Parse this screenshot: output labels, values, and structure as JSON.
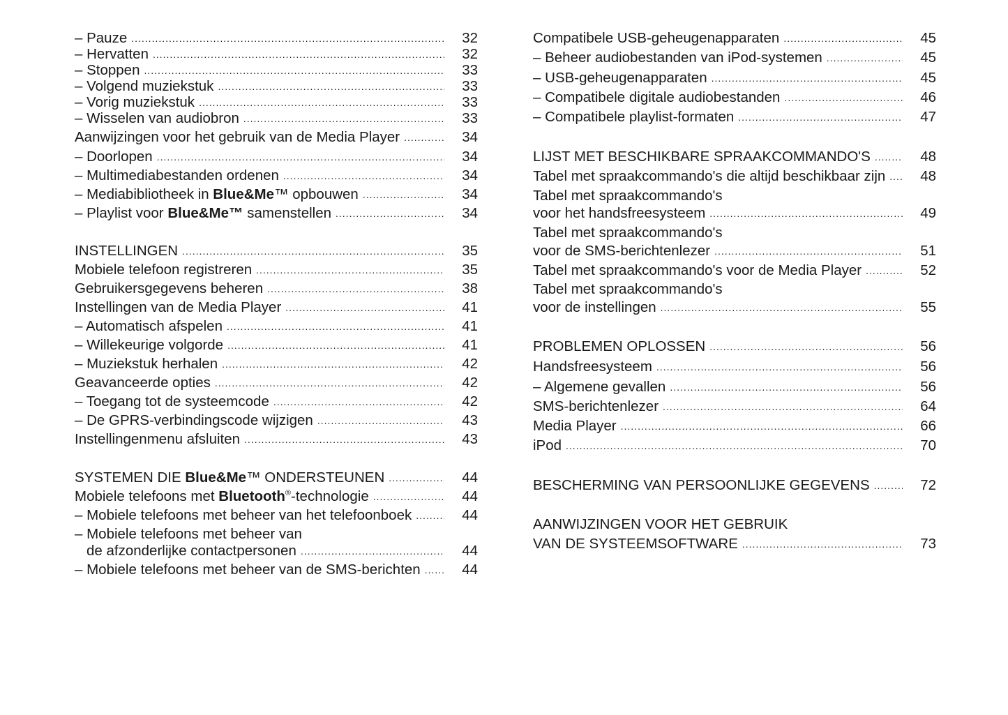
{
  "toc": {
    "left": [
      {
        "text": "– Pauze",
        "page": "32"
      },
      {
        "text": "– Hervatten",
        "page": "32"
      },
      {
        "text": "– Stoppen",
        "page": "33"
      },
      {
        "text": "– Volgend muziekstuk",
        "page": "33"
      },
      {
        "text": "– Vorig muziekstuk",
        "page": "33"
      },
      {
        "text": "– Wisselen van audiobron",
        "page": "33"
      },
      {
        "text": "Aanwijzingen voor het gebruik van de Media Player",
        "page": "34"
      },
      {
        "text": "– Doorlopen",
        "page": "34"
      },
      {
        "text": "– Multimediabestanden ordenen",
        "page": "34"
      },
      {
        "parts": [
          {
            "t": "– Mediabibliotheek in "
          },
          {
            "t": "Blue&Me",
            "b": true
          },
          {
            "t": "™ opbouwen"
          }
        ],
        "page": "34"
      },
      {
        "parts": [
          {
            "t": "– Playlist voor "
          },
          {
            "t": "Blue&Me™",
            "b": true
          },
          {
            "t": " samenstellen"
          }
        ],
        "page": "34"
      },
      {
        "text": "INSTELLINGEN",
        "page": "35"
      },
      {
        "text": "Mobiele telefoon registreren",
        "page": "35"
      },
      {
        "text": "Gebruikersgegevens beheren",
        "page": "38"
      },
      {
        "text": "Instellingen van de Media Player",
        "page": "41"
      },
      {
        "text": "– Automatisch afspelen",
        "page": "41"
      },
      {
        "text": "– Willekeurige volgorde",
        "page": "41"
      },
      {
        "text": "– Muziekstuk herhalen",
        "page": "42"
      },
      {
        "text": "Geavanceerde opties",
        "page": "42"
      },
      {
        "text": "– Toegang tot de systeemcode",
        "page": "42"
      },
      {
        "text": "– De GPRS-verbindingscode wijzigen",
        "page": "43"
      },
      {
        "text": "Instellingenmenu afsluiten",
        "page": "43"
      },
      {
        "parts": [
          {
            "t": "SYSTEMEN DIE "
          },
          {
            "t": "Blue&Me",
            "b": true
          },
          {
            "t": "™ ONDERSTEUNEN"
          }
        ],
        "page": "44"
      },
      {
        "parts": [
          {
            "t": "Mobiele telefoons met "
          },
          {
            "t": "Bluetooth",
            "b": true
          },
          {
            "t": "®",
            "sup": true
          },
          {
            "t": "-technologie"
          }
        ],
        "page": "44"
      },
      {
        "text": "– Mobiele telefoons met beheer van het telefoonboek",
        "page": "44"
      },
      {
        "text": "– Mobiele telefoons met beheer van"
      },
      {
        "text": "de afzonderlijke contactpersonen",
        "page": "44",
        "indent": true
      },
      {
        "text": "– Mobiele telefoons met beheer van de SMS-berichten",
        "page": "44"
      }
    ],
    "right": [
      {
        "text": "Compatibele USB-geheugenapparaten",
        "page": "45"
      },
      {
        "text": "– Beheer audiobestanden van iPod-systemen",
        "page": "45"
      },
      {
        "text": "– USB-geheugenapparaten",
        "page": "45"
      },
      {
        "text": "– Compatibele digitale audiobestanden",
        "page": "46"
      },
      {
        "text": "– Compatibele playlist-formaten",
        "page": "47"
      },
      {
        "text": "LIJST MET BESCHIKBARE SPRAAKCOMMANDO'S",
        "page": "48"
      },
      {
        "text": "Tabel met spraakcommando's die altijd beschikbaar zijn",
        "page": "48"
      },
      {
        "text": "Tabel met spraakcommando's"
      },
      {
        "text": "voor het handsfreesysteem",
        "page": "49"
      },
      {
        "text": "Tabel met spraakcommando's"
      },
      {
        "text": "voor de SMS-berichtenlezer",
        "page": "51"
      },
      {
        "text": "Tabel met spraakcommando's voor de Media Player",
        "page": "52"
      },
      {
        "text": "Tabel met spraakcommando's"
      },
      {
        "text": "voor de instellingen",
        "page": "55"
      },
      {
        "text": "PROBLEMEN OPLOSSEN",
        "page": "56"
      },
      {
        "text": "Handsfreesysteem",
        "page": "56"
      },
      {
        "text": "– Algemene gevallen",
        "page": "56"
      },
      {
        "text": "SMS-berichtenlezer",
        "page": "64"
      },
      {
        "text": "Media Player",
        "page": "66"
      },
      {
        "text": "iPod",
        "page": "70"
      },
      {
        "text": "BESCHERMING VAN PERSOONLIJKE GEGEVENS",
        "page": "72"
      },
      {
        "text": "AANWIJZINGEN VOOR HET GEBRUIK"
      },
      {
        "text": "VAN DE SYSTEEMSOFTWARE",
        "page": "73"
      }
    ]
  }
}
